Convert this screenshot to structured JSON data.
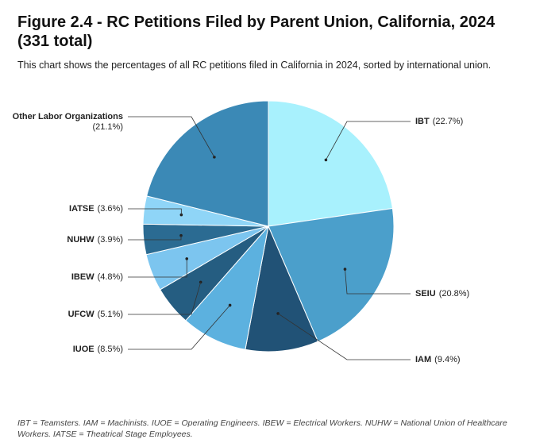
{
  "chart_data": {
    "type": "pie",
    "title": "Figure 2.4 - RC Petitions Filed by Parent Union, California, 2024 (331 total)",
    "subtitle": "This chart shows the percentages of all RC petitions filed in California in 2024, sorted by international union.",
    "categories": [
      "IBT",
      "SEIU",
      "IAM",
      "IUOE",
      "UFCW",
      "IBEW",
      "NUHW",
      "IATSE",
      "Other Labor Organizations"
    ],
    "values": [
      22.7,
      20.8,
      9.4,
      8.5,
      5.1,
      4.8,
      3.9,
      3.6,
      21.1
    ],
    "value_labels": [
      "(22.7%)",
      "(20.8%)",
      "(9.4%)",
      "(8.5%)",
      "(5.1%)",
      "(4.8%)",
      "(3.9%)",
      "(3.6%)",
      "(21.1%)"
    ],
    "colors": [
      "#a8f1fd",
      "#4b9fcb",
      "#215276",
      "#5cb1df",
      "#255d81",
      "#7cc5ef",
      "#2b6b92",
      "#8fd5f7",
      "#3b89b6"
    ],
    "note": "IBT = Teamsters. IAM = Machinists. IUOE = Operating Engineers. IBEW = Electrical Workers. NUHW = National Union of Healthcare Workers. IATSE = Theatrical Stage Employees."
  }
}
